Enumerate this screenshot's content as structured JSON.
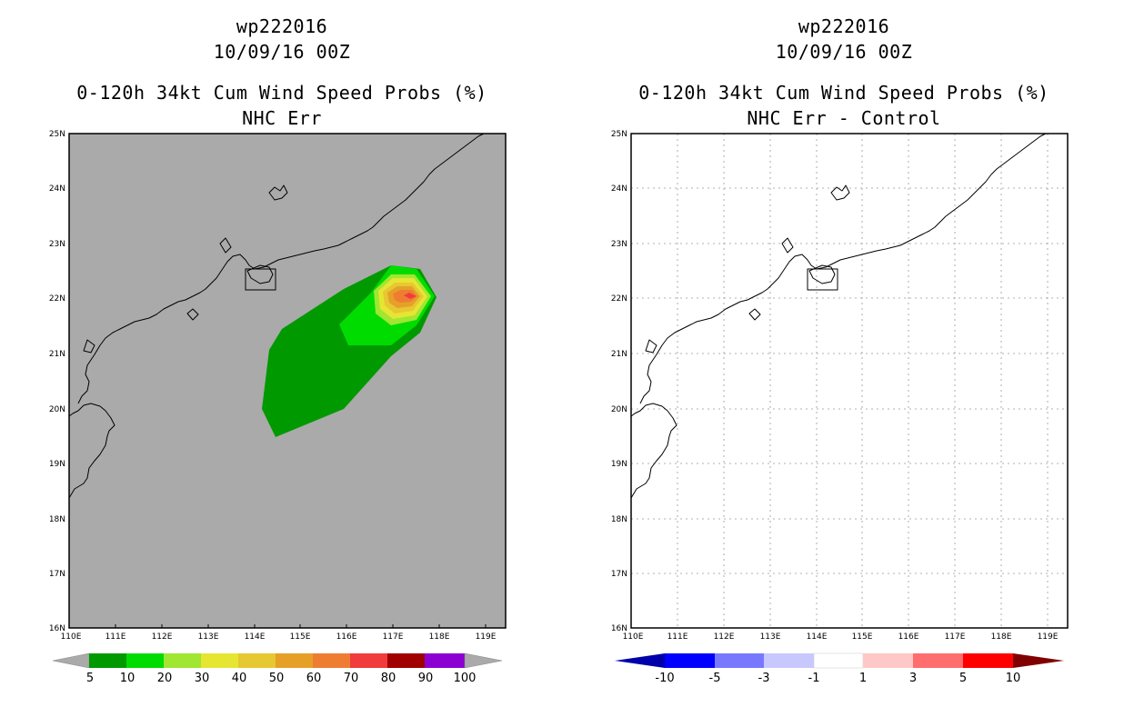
{
  "left_panel": {
    "storm_id": "wp222016",
    "datetime": "10/09/16 00Z",
    "product": "0-120h 34kt Cum Wind Speed Probs (%)",
    "subtitle": "NHC Err",
    "background_color": "#aaaaaa",
    "colorbar": {
      "colors": [
        "#009900",
        "#00dc00",
        "#a0e632",
        "#e6e632",
        "#e6c832",
        "#e6a028",
        "#ee7d32",
        "#f03c3c",
        "#a00000",
        "#8c00d2"
      ],
      "labels": [
        "5",
        "10",
        "20",
        "30",
        "40",
        "50",
        "60",
        "70",
        "80",
        "90",
        "100"
      ]
    }
  },
  "right_panel": {
    "storm_id": "wp222016",
    "datetime": "10/09/16 00Z",
    "product": "0-120h 34kt Cum Wind Speed Probs (%)",
    "subtitle": "NHC Err - Control",
    "background_color": "#ffffff",
    "colorbar": {
      "colors": [
        "#0000aa",
        "#0000ff",
        "#7878ff",
        "#c8c8ff",
        "#ffffff",
        "#ffc8c8",
        "#ff6e6e",
        "#ff0000",
        "#800000"
      ],
      "labels": [
        "-10",
        "-5",
        "-3",
        "-1",
        "1",
        "3",
        "5",
        "10"
      ]
    }
  },
  "axes": {
    "lon_labels": [
      "110E",
      "111E",
      "112E",
      "113E",
      "114E",
      "115E",
      "116E",
      "117E",
      "118E",
      "119E"
    ],
    "lat_labels": [
      "16N",
      "17N",
      "18N",
      "19N",
      "20N",
      "21N",
      "22N",
      "23N",
      "24N",
      "25N"
    ]
  },
  "probability_contours": [
    {
      "level": "5",
      "color": "#009900"
    },
    {
      "level": "10",
      "color": "#00dc00"
    },
    {
      "level": "20",
      "color": "#a0e632"
    },
    {
      "level": "30",
      "color": "#e6e632"
    },
    {
      "level": "40",
      "color": "#e6c832"
    },
    {
      "level": "50",
      "color": "#e6a028"
    },
    {
      "level": "60",
      "color": "#ee7d32"
    },
    {
      "level": "70",
      "color": "#f03c3c"
    }
  ]
}
